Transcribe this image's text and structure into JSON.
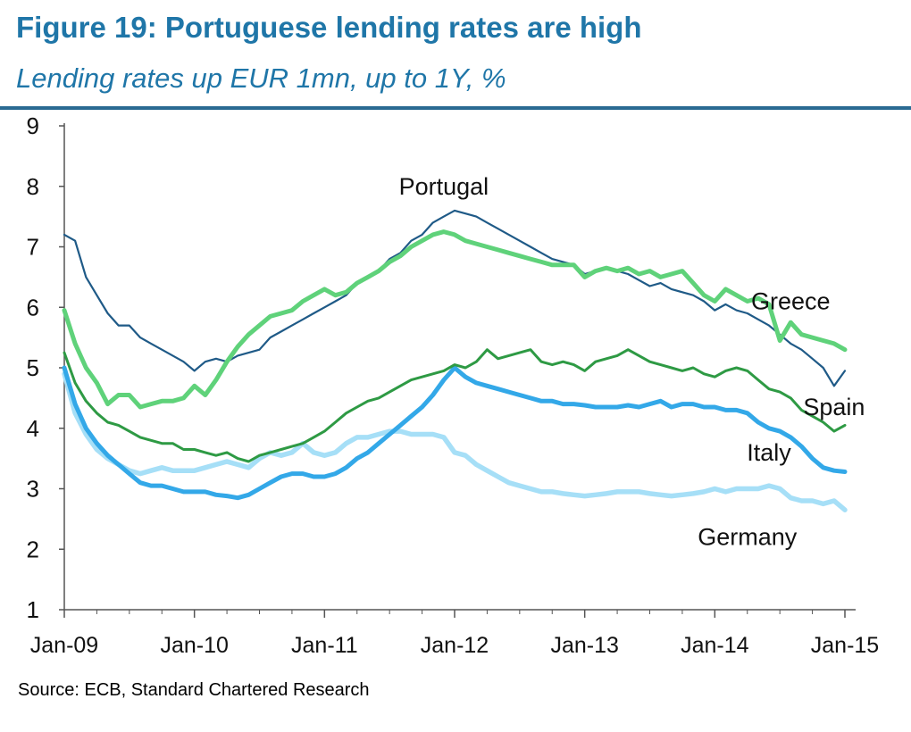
{
  "figure": {
    "title": "Figure 19: Portuguese lending rates are high",
    "subtitle": "Lending rates up EUR 1mn, up to 1Y, %",
    "source": "Source: ECB, Standard Chartered Research"
  },
  "chart_data": {
    "type": "line",
    "title": "Figure 19: Portuguese lending rates are high",
    "subtitle": "Lending rates up EUR 1mn, up to 1Y, %",
    "xlabel": "",
    "ylabel": "",
    "ylim": [
      1,
      9
    ],
    "yticks": [
      "1",
      "2",
      "3",
      "4",
      "5",
      "6",
      "7",
      "8",
      "9"
    ],
    "xticks": [
      "Jan-09",
      "Jan-10",
      "Jan-11",
      "Jan-12",
      "Jan-13",
      "Jan-14",
      "Jan-15"
    ],
    "grid": false,
    "legend": "none (direct labels)",
    "x_start": "2009-01",
    "x_end": "2015-01",
    "series": [
      {
        "name": "Portugal",
        "color": "#1f5a87",
        "label_anchor_x": "2011-12",
        "label_anchor_y": 8.0,
        "values": [
          7.2,
          7.1,
          6.5,
          6.2,
          5.9,
          5.7,
          5.7,
          5.5,
          5.4,
          5.3,
          5.2,
          5.1,
          4.95,
          5.1,
          5.15,
          5.1,
          5.2,
          5.25,
          5.3,
          5.5,
          5.6,
          5.7,
          5.8,
          5.9,
          6.0,
          6.1,
          6.2,
          6.4,
          6.5,
          6.6,
          6.8,
          6.9,
          7.1,
          7.2,
          7.4,
          7.5,
          7.6,
          7.55,
          7.5,
          7.4,
          7.3,
          7.2,
          7.1,
          7.0,
          6.9,
          6.8,
          6.75,
          6.7,
          6.55,
          6.6,
          6.65,
          6.6,
          6.55,
          6.45,
          6.35,
          6.4,
          6.3,
          6.25,
          6.2,
          6.1,
          5.95,
          6.05,
          5.95,
          5.9,
          5.8,
          5.7,
          5.55,
          5.4,
          5.3,
          5.15,
          5.0,
          4.7,
          4.95
        ]
      },
      {
        "name": "Greece",
        "color": "#5fd27a",
        "label_anchor_x": "2014-08",
        "label_anchor_y": 6.1,
        "values": [
          5.95,
          5.4,
          5.0,
          4.75,
          4.4,
          4.55,
          4.55,
          4.35,
          4.4,
          4.45,
          4.45,
          4.5,
          4.7,
          4.55,
          4.8,
          5.1,
          5.35,
          5.55,
          5.7,
          5.85,
          5.9,
          5.95,
          6.1,
          6.2,
          6.3,
          6.2,
          6.25,
          6.4,
          6.5,
          6.6,
          6.75,
          6.85,
          7.0,
          7.1,
          7.2,
          7.25,
          7.2,
          7.1,
          7.05,
          7.0,
          6.95,
          6.9,
          6.85,
          6.8,
          6.75,
          6.7,
          6.7,
          6.7,
          6.5,
          6.6,
          6.65,
          6.6,
          6.65,
          6.55,
          6.6,
          6.5,
          6.55,
          6.6,
          6.4,
          6.2,
          6.1,
          6.3,
          6.2,
          6.1,
          6.15,
          6.05,
          5.45,
          5.75,
          5.55,
          5.5,
          5.45,
          5.4,
          5.3
        ]
      },
      {
        "name": "Spain",
        "color": "#2e9a44",
        "label_anchor_x": "2014-12",
        "label_anchor_y": 4.35,
        "values": [
          5.25,
          4.75,
          4.45,
          4.25,
          4.1,
          4.05,
          3.95,
          3.85,
          3.8,
          3.75,
          3.75,
          3.65,
          3.65,
          3.6,
          3.55,
          3.6,
          3.5,
          3.45,
          3.55,
          3.6,
          3.65,
          3.7,
          3.75,
          3.85,
          3.95,
          4.1,
          4.25,
          4.35,
          4.45,
          4.5,
          4.6,
          4.7,
          4.8,
          4.85,
          4.9,
          4.95,
          5.05,
          5.0,
          5.1,
          5.3,
          5.15,
          5.2,
          5.25,
          5.3,
          5.1,
          5.05,
          5.1,
          5.05,
          4.95,
          5.1,
          5.15,
          5.2,
          5.3,
          5.2,
          5.1,
          5.05,
          5.0,
          4.95,
          5.0,
          4.9,
          4.85,
          4.95,
          5.0,
          4.95,
          4.8,
          4.65,
          4.6,
          4.5,
          4.3,
          4.2,
          4.1,
          3.95,
          4.05
        ]
      },
      {
        "name": "Italy",
        "color": "#33a8e8",
        "label_anchor_x": "2014-06",
        "label_anchor_y": 3.6,
        "values": [
          5.0,
          4.4,
          4.0,
          3.75,
          3.55,
          3.4,
          3.25,
          3.1,
          3.05,
          3.05,
          3.0,
          2.95,
          2.95,
          2.95,
          2.9,
          2.88,
          2.85,
          2.9,
          3.0,
          3.1,
          3.2,
          3.25,
          3.25,
          3.2,
          3.2,
          3.25,
          3.35,
          3.5,
          3.6,
          3.75,
          3.9,
          4.05,
          4.2,
          4.35,
          4.55,
          4.8,
          5.0,
          4.85,
          4.75,
          4.7,
          4.65,
          4.6,
          4.55,
          4.5,
          4.45,
          4.45,
          4.4,
          4.4,
          4.38,
          4.35,
          4.35,
          4.35,
          4.38,
          4.35,
          4.4,
          4.45,
          4.35,
          4.4,
          4.4,
          4.35,
          4.35,
          4.3,
          4.3,
          4.25,
          4.1,
          4.0,
          3.95,
          3.85,
          3.7,
          3.5,
          3.35,
          3.3,
          3.28
        ]
      },
      {
        "name": "Germany",
        "color": "#a6dff7",
        "label_anchor_x": "2014-04",
        "label_anchor_y": 2.2,
        "values": [
          4.9,
          4.25,
          3.9,
          3.65,
          3.5,
          3.4,
          3.3,
          3.25,
          3.3,
          3.35,
          3.3,
          3.3,
          3.3,
          3.35,
          3.4,
          3.45,
          3.4,
          3.35,
          3.5,
          3.6,
          3.55,
          3.6,
          3.75,
          3.6,
          3.55,
          3.6,
          3.75,
          3.85,
          3.85,
          3.9,
          3.95,
          3.95,
          3.9,
          3.9,
          3.9,
          3.85,
          3.6,
          3.55,
          3.4,
          3.3,
          3.2,
          3.1,
          3.05,
          3.0,
          2.95,
          2.95,
          2.92,
          2.9,
          2.88,
          2.9,
          2.92,
          2.95,
          2.95,
          2.95,
          2.92,
          2.9,
          2.88,
          2.9,
          2.92,
          2.95,
          3.0,
          2.95,
          3.0,
          3.0,
          3.0,
          3.05,
          3.0,
          2.85,
          2.8,
          2.8,
          2.75,
          2.8,
          2.65
        ]
      }
    ]
  }
}
